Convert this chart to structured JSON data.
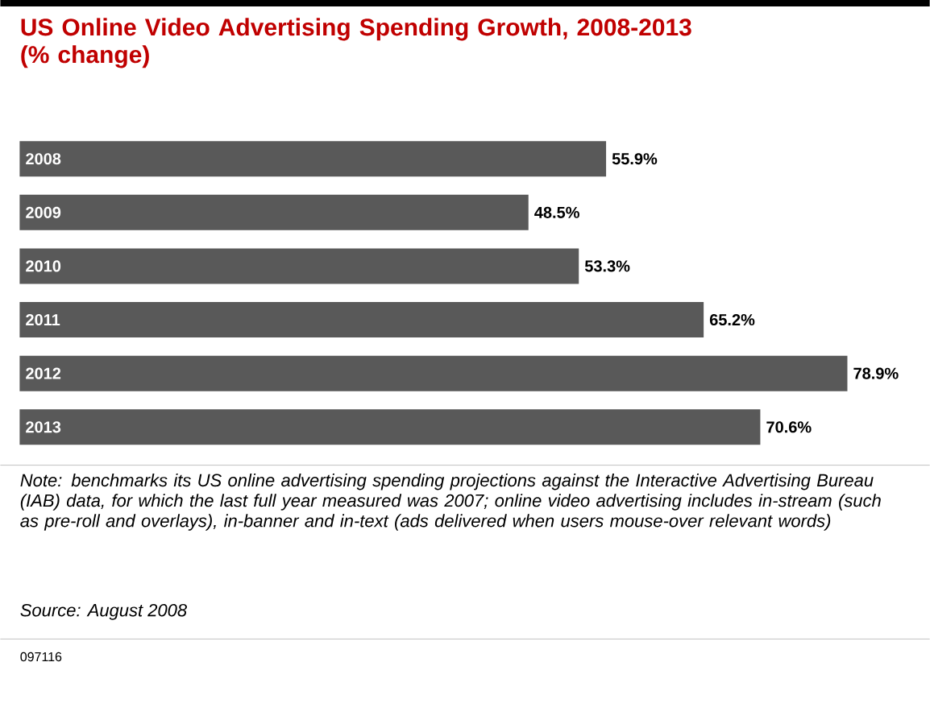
{
  "chart_data": {
    "type": "bar",
    "orientation": "horizontal",
    "title": "US Online Video Advertising Spending Growth, 2008-2013 (% change)",
    "categories": [
      "2008",
      "2009",
      "2010",
      "2011",
      "2012",
      "2013"
    ],
    "values": [
      55.9,
      48.5,
      53.3,
      65.2,
      78.9,
      70.6
    ],
    "value_labels": [
      "55.9%",
      "48.5%",
      "53.3%",
      "65.2%",
      "78.9%",
      "70.6%"
    ],
    "color": "#595959",
    "annotations": [
      "Note: benchmarks its US online advertising spending projections against the Interactive Advertising Bureau (IAB) data, for which the last full year measured was 2007; online video advertising includes in-stream (such as pre-roll and overlays), in-banner and in-text (ads delivered when users mouse-over relevant words)",
      "Source: August 2008",
      "097116"
    ]
  }
}
